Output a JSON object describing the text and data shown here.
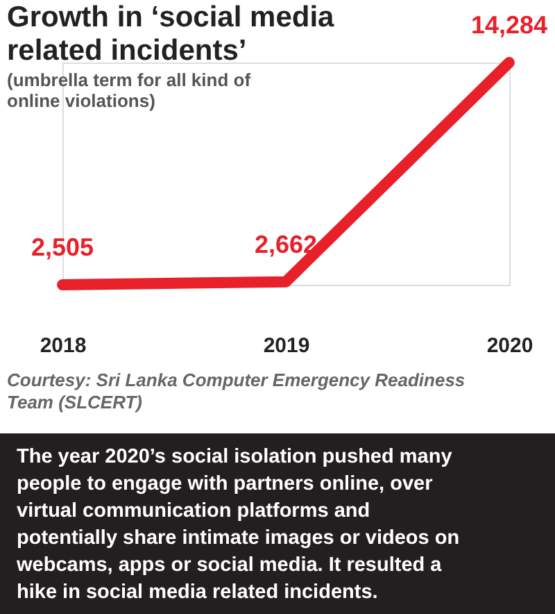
{
  "chart_data": {
    "type": "line",
    "title": "Growth in ‘social media related incidents’",
    "subtitle": "(umbrella term for all kind of online violations)",
    "categories": [
      "2018",
      "2019",
      "2020"
    ],
    "series": [
      {
        "color": "#e8202a",
        "values": [
          2505,
          2662,
          14284
        ],
        "value_labels": [
          "2,505",
          "2,662",
          "14,284"
        ]
      }
    ],
    "grid": false,
    "line_style": "solid",
    "tick_labels": "x",
    "annotations": [
      "Courtesy: Sri Lanka Computer Emergency Readiness Team (SLCERT)",
      "The year 2020’s social isolation pushed many people to engage with partners online, over virtual communication platforms and potentially share intimate images or videos on webcams, apps or social media. It resulted a hike in social media related incidents."
    ]
  }
}
